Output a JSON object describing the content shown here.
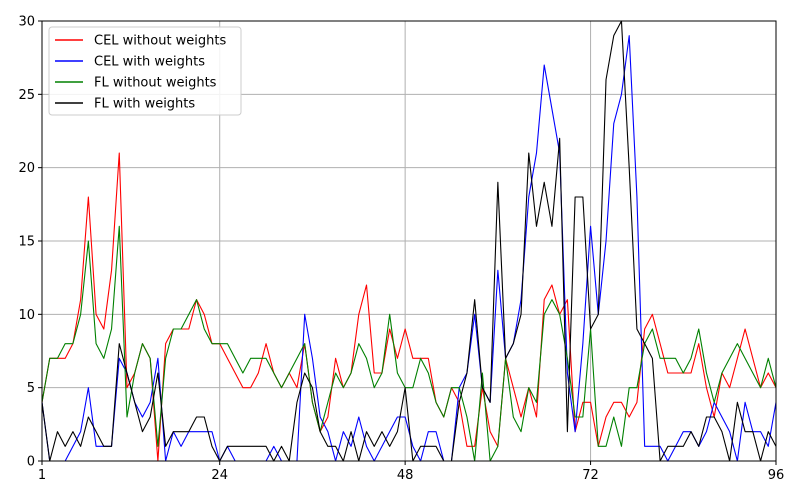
{
  "chart_data": {
    "type": "line",
    "title": "",
    "xlabel": "",
    "ylabel": "",
    "xlim": [
      1,
      96
    ],
    "ylim": [
      0,
      30
    ],
    "xticks": [
      1,
      24,
      48,
      72,
      96
    ],
    "yticks": [
      0,
      5,
      10,
      15,
      20,
      25,
      30
    ],
    "grid": true,
    "legend": "top-left",
    "series": [
      {
        "name": "CEL without weights",
        "color": "#ff0000",
        "values": [
          4,
          7,
          7,
          7,
          8,
          11,
          18,
          10,
          9,
          13,
          21,
          5,
          6,
          8,
          7,
          0,
          8,
          9,
          9,
          9,
          11,
          10,
          8,
          8,
          7,
          6,
          5,
          5,
          6,
          8,
          6,
          5,
          6,
          5,
          8,
          4,
          2,
          3,
          7,
          5,
          6,
          10,
          12,
          6,
          6,
          9,
          7,
          9,
          7,
          7,
          7,
          4,
          3,
          5,
          4,
          1,
          1,
          5,
          2,
          1,
          7,
          5,
          3,
          5,
          3,
          11,
          12,
          10,
          11,
          2,
          4,
          4,
          1,
          3,
          4,
          4,
          3,
          4,
          9,
          10,
          8,
          6,
          6,
          6,
          6,
          8,
          5,
          3,
          6,
          5,
          7,
          9,
          7,
          5,
          6,
          5
        ]
      },
      {
        "name": "CEL with weights",
        "color": "#0000ff",
        "values": [
          4,
          0,
          0,
          0,
          1,
          2,
          5,
          1,
          1,
          1,
          7,
          6,
          4,
          3,
          4,
          7,
          0,
          2,
          1,
          2,
          2,
          2,
          2,
          0,
          1,
          0,
          0,
          0,
          0,
          0,
          1,
          0,
          0,
          0,
          10,
          7,
          3,
          2,
          0,
          2,
          1,
          3,
          1,
          0,
          1,
          2,
          3,
          3,
          1,
          0,
          2,
          2,
          0,
          0,
          5,
          6,
          10,
          5,
          4,
          13,
          7,
          8,
          11,
          18,
          21,
          27,
          24,
          21,
          6,
          2,
          8,
          16,
          10,
          15,
          23,
          25,
          29,
          18,
          1,
          1,
          1,
          0,
          1,
          2,
          2,
          1,
          2,
          4,
          3,
          2,
          0,
          4,
          2,
          2,
          1,
          4
        ]
      },
      {
        "name": "FL without weights",
        "color": "#008000",
        "values": [
          4,
          7,
          7,
          8,
          8,
          10,
          15,
          8,
          7,
          9,
          16,
          3,
          6,
          8,
          7,
          1,
          7,
          9,
          9,
          10,
          11,
          9,
          8,
          8,
          8,
          7,
          6,
          7,
          7,
          7,
          6,
          5,
          6,
          7,
          8,
          4,
          2,
          4,
          6,
          5,
          6,
          8,
          7,
          5,
          6,
          10,
          6,
          5,
          5,
          7,
          6,
          4,
          3,
          5,
          5,
          3,
          0,
          6,
          0,
          1,
          7,
          3,
          2,
          5,
          4,
          10,
          11,
          10,
          7,
          3,
          3,
          9,
          1,
          1,
          3,
          1,
          5,
          5,
          8,
          9,
          7,
          7,
          7,
          6,
          7,
          9,
          6,
          4,
          6,
          7,
          8,
          7,
          6,
          5,
          7,
          5
        ]
      },
      {
        "name": "FL with weights",
        "color": "#000000",
        "values": [
          4,
          0,
          2,
          1,
          2,
          1,
          3,
          2,
          1,
          1,
          8,
          6,
          4,
          2,
          3,
          6,
          1,
          2,
          2,
          2,
          3,
          3,
          1,
          0,
          1,
          1,
          1,
          1,
          1,
          1,
          0,
          1,
          0,
          4,
          6,
          5,
          2,
          1,
          1,
          0,
          2,
          0,
          2,
          1,
          2,
          1,
          2,
          5,
          0,
          1,
          1,
          1,
          0,
          0,
          4,
          6,
          11,
          5,
          4,
          19,
          7,
          8,
          10,
          21,
          16,
          19,
          16,
          22,
          2,
          18,
          18,
          9,
          10,
          26,
          29,
          30,
          20,
          9,
          8,
          7,
          0,
          1,
          1,
          1,
          2,
          1,
          3,
          3,
          2,
          0,
          4,
          2,
          2,
          0,
          2,
          1
        ]
      }
    ]
  }
}
